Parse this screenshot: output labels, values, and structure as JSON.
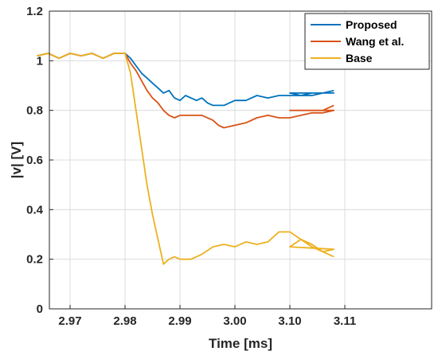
{
  "chart_data": {
    "type": "line",
    "title": "",
    "xlabel": "Time [ms]",
    "ylabel": "|v| [V]",
    "ylim": [
      0,
      1.2
    ],
    "yticks": [
      "0",
      "0.2",
      "0.4",
      "0.6",
      "0.8",
      "1",
      "1.2"
    ],
    "xticks": [
      "2.97",
      "2.98",
      "2.99",
      "3.00",
      "3.10",
      "3.11"
    ],
    "grid": true,
    "legend_position": "top-right",
    "series": [
      {
        "name": "Proposed",
        "color": "#0072BD",
        "points": [
          [
            -1.6,
            1.02
          ],
          [
            -1.4,
            1.03
          ],
          [
            -1.2,
            1.01
          ],
          [
            -1.0,
            1.03
          ],
          [
            -0.8,
            1.02
          ],
          [
            -0.6,
            1.03
          ],
          [
            -0.4,
            1.01
          ],
          [
            -0.2,
            1.03
          ],
          [
            0,
            1.03
          ],
          [
            0.1,
            1.01
          ],
          [
            0.2,
            0.98
          ],
          [
            0.3,
            0.95
          ],
          [
            0.4,
            0.93
          ],
          [
            0.5,
            0.91
          ],
          [
            0.6,
            0.89
          ],
          [
            0.7,
            0.87
          ],
          [
            0.8,
            0.88
          ],
          [
            0.9,
            0.85
          ],
          [
            1.0,
            0.84
          ],
          [
            1.1,
            0.86
          ],
          [
            1.2,
            0.85
          ],
          [
            1.3,
            0.84
          ],
          [
            1.4,
            0.85
          ],
          [
            1.5,
            0.83
          ],
          [
            1.6,
            0.82
          ],
          [
            1.7,
            0.82
          ],
          [
            1.8,
            0.82
          ],
          [
            1.9,
            0.83
          ],
          [
            2.0,
            0.84
          ],
          [
            2.2,
            0.84
          ],
          [
            2.4,
            0.86
          ],
          [
            2.6,
            0.85
          ],
          [
            2.8,
            0.86
          ],
          [
            3.0,
            0.86
          ],
          [
            3.2,
            0.86
          ],
          [
            3.4,
            0.86
          ],
          [
            3.6,
            0.87
          ],
          [
            3.8,
            0.87
          ],
          [
            4.0,
            0.87
          ],
          [
            4.2,
            0.86
          ],
          [
            4.4,
            0.87
          ],
          [
            4.6,
            0.87
          ],
          [
            4.8,
            0.88
          ]
        ]
      },
      {
        "name": "Wang et al.",
        "color": "#D95319",
        "points": [
          [
            -1.6,
            1.02
          ],
          [
            -1.4,
            1.03
          ],
          [
            -1.2,
            1.01
          ],
          [
            -1.0,
            1.03
          ],
          [
            -0.8,
            1.02
          ],
          [
            -0.6,
            1.03
          ],
          [
            -0.4,
            1.01
          ],
          [
            -0.2,
            1.03
          ],
          [
            0,
            1.03
          ],
          [
            0.1,
            0.99
          ],
          [
            0.2,
            0.96
          ],
          [
            0.3,
            0.92
          ],
          [
            0.4,
            0.88
          ],
          [
            0.5,
            0.85
          ],
          [
            0.6,
            0.83
          ],
          [
            0.7,
            0.8
          ],
          [
            0.8,
            0.78
          ],
          [
            0.9,
            0.77
          ],
          [
            1.0,
            0.78
          ],
          [
            1.2,
            0.78
          ],
          [
            1.4,
            0.78
          ],
          [
            1.6,
            0.76
          ],
          [
            1.7,
            0.74
          ],
          [
            1.8,
            0.73
          ],
          [
            2.0,
            0.74
          ],
          [
            2.2,
            0.75
          ],
          [
            2.4,
            0.77
          ],
          [
            2.6,
            0.78
          ],
          [
            2.8,
            0.77
          ],
          [
            3.0,
            0.77
          ],
          [
            3.2,
            0.78
          ],
          [
            3.4,
            0.79
          ],
          [
            3.6,
            0.79
          ],
          [
            3.8,
            0.8
          ],
          [
            4.0,
            0.8
          ],
          [
            4.2,
            0.8
          ],
          [
            4.4,
            0.8
          ],
          [
            4.6,
            0.8
          ],
          [
            4.8,
            0.82
          ]
        ]
      },
      {
        "name": "Base",
        "color": "#EDB120",
        "points": [
          [
            -1.6,
            1.02
          ],
          [
            -1.4,
            1.03
          ],
          [
            -1.2,
            1.01
          ],
          [
            -1.0,
            1.03
          ],
          [
            -0.8,
            1.02
          ],
          [
            -0.6,
            1.03
          ],
          [
            -0.4,
            1.01
          ],
          [
            -0.2,
            1.03
          ],
          [
            0,
            1.03
          ],
          [
            0.1,
            0.95
          ],
          [
            0.2,
            0.8
          ],
          [
            0.3,
            0.65
          ],
          [
            0.4,
            0.5
          ],
          [
            0.5,
            0.38
          ],
          [
            0.6,
            0.28
          ],
          [
            0.7,
            0.18
          ],
          [
            0.8,
            0.2
          ],
          [
            0.9,
            0.21
          ],
          [
            1.0,
            0.2
          ],
          [
            1.2,
            0.2
          ],
          [
            1.4,
            0.22
          ],
          [
            1.6,
            0.25
          ],
          [
            1.8,
            0.26
          ],
          [
            2.0,
            0.25
          ],
          [
            2.2,
            0.27
          ],
          [
            2.4,
            0.26
          ],
          [
            2.6,
            0.27
          ],
          [
            2.8,
            0.31
          ],
          [
            3.0,
            0.31
          ],
          [
            3.2,
            0.28
          ],
          [
            3.4,
            0.25
          ],
          [
            3.6,
            0.23
          ],
          [
            3.8,
            0.24
          ],
          [
            4.0,
            0.25
          ],
          [
            4.2,
            0.28
          ],
          [
            4.4,
            0.26
          ],
          [
            4.6,
            0.23
          ],
          [
            4.8,
            0.21
          ]
        ]
      }
    ]
  }
}
